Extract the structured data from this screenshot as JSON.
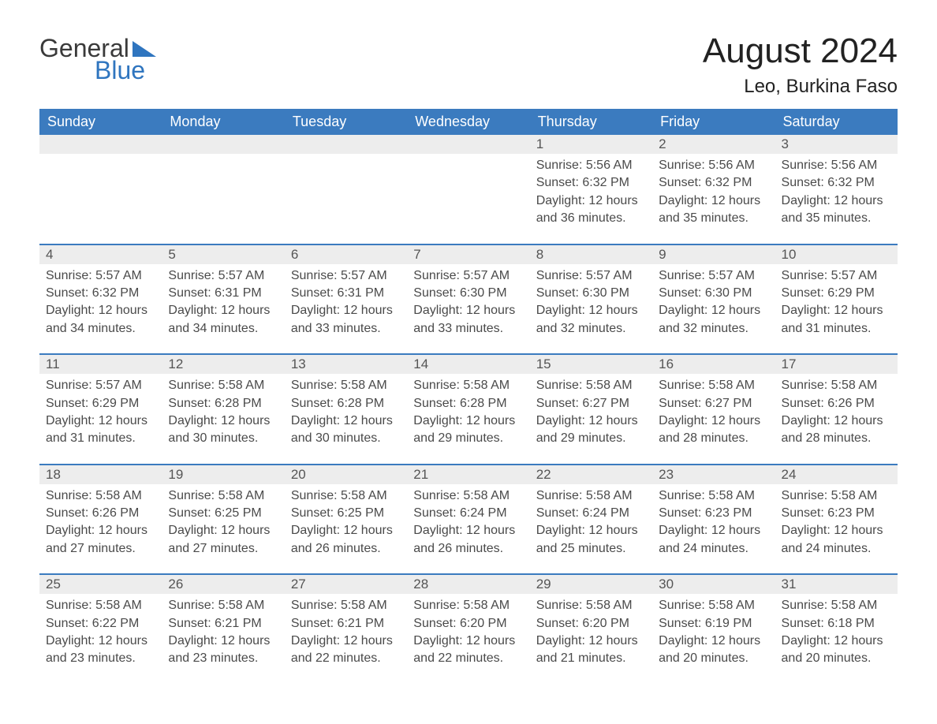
{
  "brand": {
    "word1": "General",
    "word2": "Blue",
    "color_dark": "#3a3a3a",
    "color_blue": "#2f75bf"
  },
  "header": {
    "month_title": "August 2024",
    "location": "Leo, Burkina Faso"
  },
  "styling": {
    "accent_color": "#3b7bbf",
    "day_header_bg": "#3b7bbf",
    "day_header_text_color": "#ffffff",
    "day_number_strip_bg": "#ededed",
    "body_text_color": "#4a4a4a",
    "background_color": "#ffffff",
    "month_title_fontsize": 44,
    "location_fontsize": 24,
    "weekday_fontsize": 18,
    "cell_fontsize": 16,
    "weekdays": [
      "Sunday",
      "Monday",
      "Tuesday",
      "Wednesday",
      "Thursday",
      "Friday",
      "Saturday"
    ]
  },
  "calendar": {
    "blank_leading_cells": 4,
    "days": [
      {
        "n": 1,
        "sunrise": "5:56 AM",
        "sunset": "6:32 PM",
        "daylight": "12 hours and 36 minutes."
      },
      {
        "n": 2,
        "sunrise": "5:56 AM",
        "sunset": "6:32 PM",
        "daylight": "12 hours and 35 minutes."
      },
      {
        "n": 3,
        "sunrise": "5:56 AM",
        "sunset": "6:32 PM",
        "daylight": "12 hours and 35 minutes."
      },
      {
        "n": 4,
        "sunrise": "5:57 AM",
        "sunset": "6:32 PM",
        "daylight": "12 hours and 34 minutes."
      },
      {
        "n": 5,
        "sunrise": "5:57 AM",
        "sunset": "6:31 PM",
        "daylight": "12 hours and 34 minutes."
      },
      {
        "n": 6,
        "sunrise": "5:57 AM",
        "sunset": "6:31 PM",
        "daylight": "12 hours and 33 minutes."
      },
      {
        "n": 7,
        "sunrise": "5:57 AM",
        "sunset": "6:30 PM",
        "daylight": "12 hours and 33 minutes."
      },
      {
        "n": 8,
        "sunrise": "5:57 AM",
        "sunset": "6:30 PM",
        "daylight": "12 hours and 32 minutes."
      },
      {
        "n": 9,
        "sunrise": "5:57 AM",
        "sunset": "6:30 PM",
        "daylight": "12 hours and 32 minutes."
      },
      {
        "n": 10,
        "sunrise": "5:57 AM",
        "sunset": "6:29 PM",
        "daylight": "12 hours and 31 minutes."
      },
      {
        "n": 11,
        "sunrise": "5:57 AM",
        "sunset": "6:29 PM",
        "daylight": "12 hours and 31 minutes."
      },
      {
        "n": 12,
        "sunrise": "5:58 AM",
        "sunset": "6:28 PM",
        "daylight": "12 hours and 30 minutes."
      },
      {
        "n": 13,
        "sunrise": "5:58 AM",
        "sunset": "6:28 PM",
        "daylight": "12 hours and 30 minutes."
      },
      {
        "n": 14,
        "sunrise": "5:58 AM",
        "sunset": "6:28 PM",
        "daylight": "12 hours and 29 minutes."
      },
      {
        "n": 15,
        "sunrise": "5:58 AM",
        "sunset": "6:27 PM",
        "daylight": "12 hours and 29 minutes."
      },
      {
        "n": 16,
        "sunrise": "5:58 AM",
        "sunset": "6:27 PM",
        "daylight": "12 hours and 28 minutes."
      },
      {
        "n": 17,
        "sunrise": "5:58 AM",
        "sunset": "6:26 PM",
        "daylight": "12 hours and 28 minutes."
      },
      {
        "n": 18,
        "sunrise": "5:58 AM",
        "sunset": "6:26 PM",
        "daylight": "12 hours and 27 minutes."
      },
      {
        "n": 19,
        "sunrise": "5:58 AM",
        "sunset": "6:25 PM",
        "daylight": "12 hours and 27 minutes."
      },
      {
        "n": 20,
        "sunrise": "5:58 AM",
        "sunset": "6:25 PM",
        "daylight": "12 hours and 26 minutes."
      },
      {
        "n": 21,
        "sunrise": "5:58 AM",
        "sunset": "6:24 PM",
        "daylight": "12 hours and 26 minutes."
      },
      {
        "n": 22,
        "sunrise": "5:58 AM",
        "sunset": "6:24 PM",
        "daylight": "12 hours and 25 minutes."
      },
      {
        "n": 23,
        "sunrise": "5:58 AM",
        "sunset": "6:23 PM",
        "daylight": "12 hours and 24 minutes."
      },
      {
        "n": 24,
        "sunrise": "5:58 AM",
        "sunset": "6:23 PM",
        "daylight": "12 hours and 24 minutes."
      },
      {
        "n": 25,
        "sunrise": "5:58 AM",
        "sunset": "6:22 PM",
        "daylight": "12 hours and 23 minutes."
      },
      {
        "n": 26,
        "sunrise": "5:58 AM",
        "sunset": "6:21 PM",
        "daylight": "12 hours and 23 minutes."
      },
      {
        "n": 27,
        "sunrise": "5:58 AM",
        "sunset": "6:21 PM",
        "daylight": "12 hours and 22 minutes."
      },
      {
        "n": 28,
        "sunrise": "5:58 AM",
        "sunset": "6:20 PM",
        "daylight": "12 hours and 22 minutes."
      },
      {
        "n": 29,
        "sunrise": "5:58 AM",
        "sunset": "6:20 PM",
        "daylight": "12 hours and 21 minutes."
      },
      {
        "n": 30,
        "sunrise": "5:58 AM",
        "sunset": "6:19 PM",
        "daylight": "12 hours and 20 minutes."
      },
      {
        "n": 31,
        "sunrise": "5:58 AM",
        "sunset": "6:18 PM",
        "daylight": "12 hours and 20 minutes."
      }
    ],
    "labels": {
      "sunrise_prefix": "Sunrise: ",
      "sunset_prefix": "Sunset: ",
      "daylight_prefix": "Daylight: "
    }
  }
}
